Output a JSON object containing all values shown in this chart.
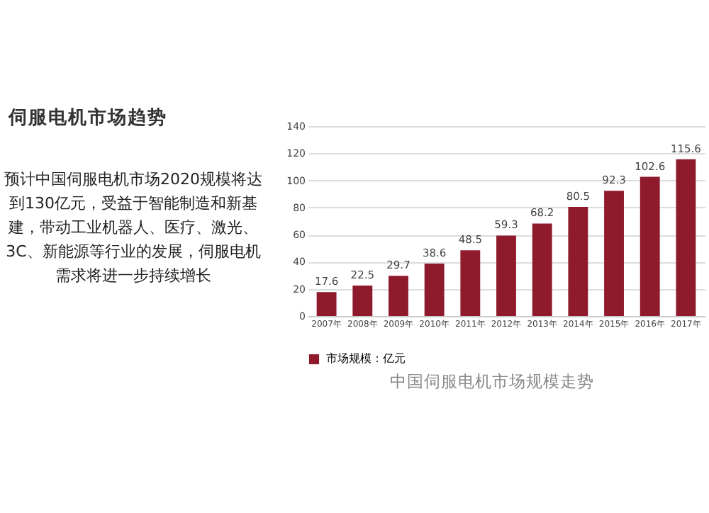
{
  "chart_data": {
    "type": "bar",
    "title": "伺服电机市场趋势",
    "subtitle": "预计中国伺服电机市场2020规模将达到130亿元，受益于智能制造和新基建，带动工业机器人、医疗、激光、3C、新能源等行业的发展，伺服电机需求将进一步持续增长",
    "categories": [
      "2007年",
      "2008年",
      "2009年",
      "2010年",
      "2011年",
      "2012年",
      "2013年",
      "2014年",
      "2015年",
      "2016年",
      "2017年"
    ],
    "series": [
      {
        "name": "市场规模：亿元",
        "color": "#8e1a2c",
        "values": [
          17.6,
          22.5,
          29.7,
          38.6,
          48.5,
          59.3,
          68.2,
          80.5,
          92.3,
          102.6,
          115.6
        ]
      }
    ],
    "ylim": [
      0,
      140
    ],
    "yticks": [
      0,
      20,
      40,
      60,
      80,
      100,
      120,
      140
    ],
    "grid": "y",
    "legend": "bottom",
    "data_labels": true,
    "annotations": [
      "中国伺服电机市场规模走势"
    ]
  }
}
